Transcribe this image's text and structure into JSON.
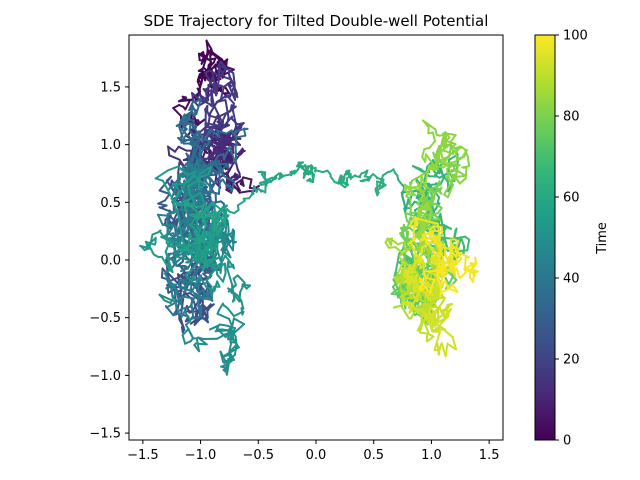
{
  "chart_data": {
    "type": "scatter",
    "title": "SDE Trajectory for Tilted Double-well Potential",
    "xlabel": "",
    "ylabel": "",
    "xlim": [
      -1.62,
      1.62
    ],
    "ylim": [
      -1.56,
      1.95
    ],
    "x_ticks": [
      -1.5,
      -1.0,
      -0.5,
      0.0,
      0.5,
      1.0,
      1.5
    ],
    "x_tick_labels": [
      "−1.5",
      "−1.0",
      "−0.5",
      "0.0",
      "0.5",
      "1.0",
      "1.5"
    ],
    "y_ticks": [
      -1.5,
      -1.0,
      -0.5,
      0.0,
      0.5,
      1.0,
      1.5
    ],
    "y_tick_labels": [
      "−1.5",
      "−1.0",
      "−0.5",
      "0.0",
      "0.5",
      "1.0",
      "1.5"
    ],
    "grid": false,
    "colormap": "viridis",
    "color_variable": "Time",
    "time_range": [
      0,
      100
    ],
    "colorbar": {
      "label": "Time",
      "range": [
        0,
        100
      ],
      "ticks": [
        0,
        20,
        40,
        60,
        80,
        100
      ],
      "tick_labels": [
        "0",
        "20",
        "40",
        "60",
        "80",
        "100"
      ]
    },
    "trajectory_phases": [
      {
        "t_start": 0,
        "t_end": 15,
        "center": [
          -0.9,
          0.9
        ],
        "spread": [
          0.2,
          0.55
        ]
      },
      {
        "t_start": 15,
        "t_end": 58,
        "center": [
          -1.0,
          0.1
        ],
        "spread": [
          0.25,
          0.7
        ]
      },
      {
        "t_start": 58,
        "t_end": 63,
        "transition_from": [
          -0.6,
          0.6
        ],
        "transition_to": [
          0.6,
          0.6
        ]
      },
      {
        "t_start": 63,
        "t_end": 100,
        "center": [
          0.95,
          0.05
        ],
        "spread": [
          0.22,
          0.65
        ]
      }
    ],
    "colors": {
      "viridis_stops": [
        "#440154",
        "#482878",
        "#3e4a89",
        "#31688e",
        "#26828e",
        "#1f9e89",
        "#35b779",
        "#6ece58",
        "#b5de2b",
        "#fde725"
      ],
      "axes": "#000000",
      "background": "#ffffff"
    }
  }
}
